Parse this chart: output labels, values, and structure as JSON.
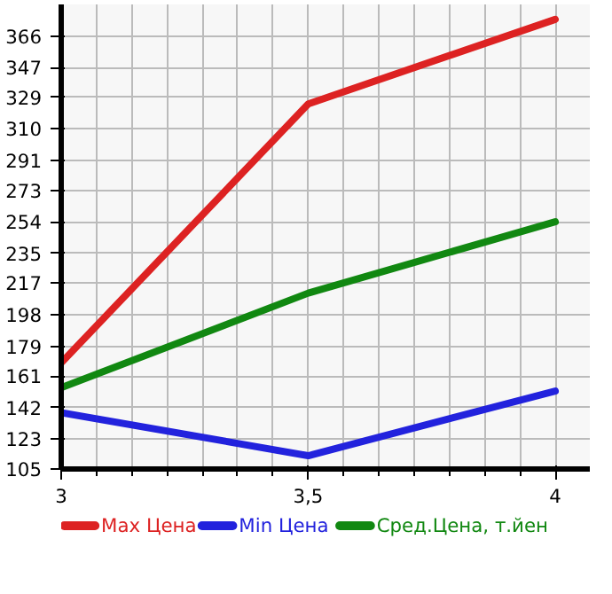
{
  "chart_data": {
    "type": "line",
    "x": [
      3,
      3.5,
      4
    ],
    "series": [
      {
        "name": "Max Цена",
        "color": "#dd2222",
        "values": [
          169,
          325,
          376
        ]
      },
      {
        "name": "Min Цена",
        "color": "#2222dd",
        "values": [
          139,
          113,
          152
        ]
      },
      {
        "name": "Сред.Цена, т.йен",
        "color": "#118811",
        "values": [
          154,
          211,
          254
        ]
      }
    ],
    "xlim": [
      3,
      4.07
    ],
    "xticks": [
      3,
      {
        "value": 3.5,
        "label": "3,5"
      },
      4
    ],
    "ylim": [
      105,
      385
    ],
    "yticks": [
      105,
      123,
      142,
      161,
      179,
      198,
      217,
      235,
      254,
      273,
      291,
      310,
      329,
      347,
      366
    ],
    "grid": true,
    "legend": "bottom",
    "marker": "none",
    "line_style": "solid"
  }
}
